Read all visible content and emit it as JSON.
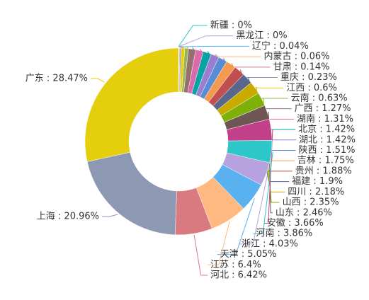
{
  "chart_data": {
    "type": "donut",
    "value_labels": [
      "新疆 : 0%",
      "黑龙江 : 0%",
      "辽宁 : 0.04%",
      "内蒙古 : 0.06%",
      "甘肃 : 0.14%",
      "重庆 : 0.23%",
      "江西 : 0.6%",
      "云南 : 0.63%",
      "广西 : 1.27%",
      "湖南 : 1.31%",
      "北京 : 1.42%",
      "湖北 : 1.42%",
      "陕西 : 1.51%",
      "吉林 : 1.75%",
      "贵州 : 1.88%",
      "福建 : 1.9%",
      "四川 : 2.18%",
      "山西 : 2.35%",
      "山东 : 2.46%",
      "安徽 : 3.66%",
      "河南 : 3.86%",
      "浙江 : 4.03%",
      "天津 : 5.05%",
      "江苏 : 6.4%",
      "河北 : 6.42%",
      "上海 : 20.96%",
      "广东 : 28.47%"
    ],
    "values": [
      0,
      0,
      0.04,
      0.06,
      0.14,
      0.23,
      0.6,
      0.63,
      1.27,
      1.31,
      1.42,
      1.42,
      1.51,
      1.75,
      1.88,
      1.9,
      2.18,
      2.35,
      2.46,
      3.66,
      3.86,
      4.03,
      5.05,
      6.4,
      6.42,
      20.96,
      28.47
    ],
    "colors": [
      "#2ec7c9",
      "#b6a2de",
      "#5ab1ef",
      "#ffb980",
      "#d87a80",
      "#8d98b3",
      "#e5cf0d",
      "#97b552",
      "#95706d",
      "#dc69aa",
      "#07a2a4",
      "#9a7fd1",
      "#588dd5",
      "#f5994e",
      "#c05050",
      "#59678c",
      "#c9ab00",
      "#7eb00a",
      "#6f5553",
      "#c14089",
      "#2ec7c9",
      "#b6a2de",
      "#5ab1ef",
      "#ffb980",
      "#d87a80",
      "#8d98b3",
      "#e5cf0d"
    ]
  }
}
